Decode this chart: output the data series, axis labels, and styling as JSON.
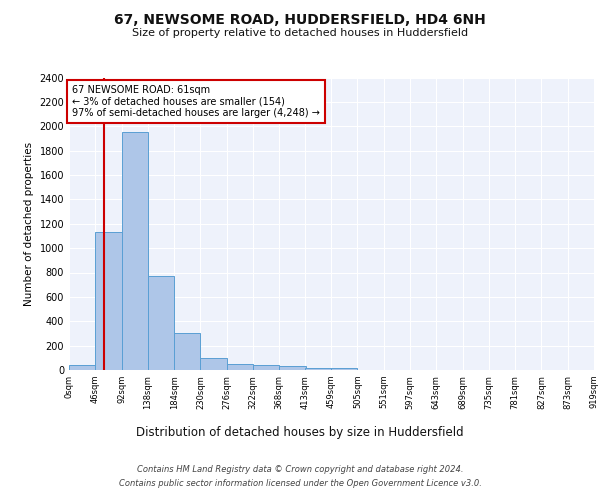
{
  "title1": "67, NEWSOME ROAD, HUDDERSFIELD, HD4 6NH",
  "title2": "Size of property relative to detached houses in Huddersfield",
  "xlabel": "Distribution of detached houses by size in Huddersfield",
  "ylabel": "Number of detached properties",
  "bin_edges": [
    0,
    46,
    92,
    138,
    184,
    230,
    276,
    322,
    368,
    413,
    459,
    505,
    551,
    597,
    643,
    689,
    735,
    781,
    827,
    873,
    919
  ],
  "bar_heights": [
    40,
    1130,
    1950,
    770,
    300,
    100,
    50,
    40,
    30,
    20,
    20,
    0,
    0,
    0,
    0,
    0,
    0,
    0,
    0,
    0
  ],
  "bar_color": "#aec6e8",
  "bar_edge_color": "#5a9fd4",
  "property_size": 61,
  "red_line_color": "#cc0000",
  "annotation_text": "67 NEWSOME ROAD: 61sqm\n← 3% of detached houses are smaller (154)\n97% of semi-detached houses are larger (4,248) →",
  "annotation_box_color": "#ffffff",
  "annotation_edge_color": "#cc0000",
  "ylim": [
    0,
    2400
  ],
  "yticks": [
    0,
    200,
    400,
    600,
    800,
    1000,
    1200,
    1400,
    1600,
    1800,
    2000,
    2200,
    2400
  ],
  "background_color": "#eef2fb",
  "grid_color": "#ffffff",
  "footer1": "Contains HM Land Registry data © Crown copyright and database right 2024.",
  "footer2": "Contains public sector information licensed under the Open Government Licence v3.0."
}
